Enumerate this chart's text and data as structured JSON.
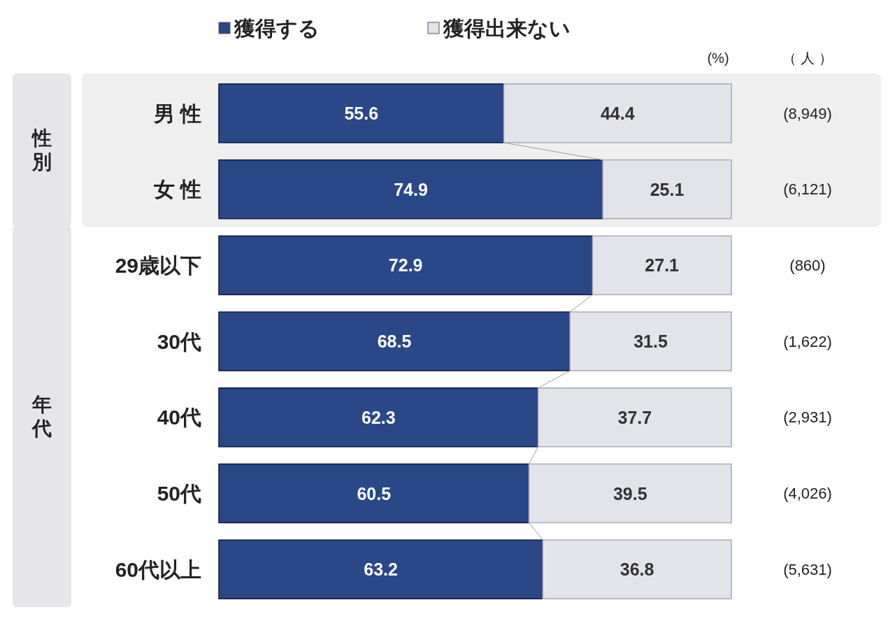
{
  "chart_data": {
    "type": "bar",
    "orientation": "horizontal",
    "stacked": true,
    "data_labels": true,
    "legend": "top",
    "xlim": [
      0,
      100
    ],
    "categories": [
      "男 性",
      "女 性",
      "29歳以下",
      "30代",
      "40代",
      "50代",
      "60代以上"
    ],
    "series": [
      {
        "name": "獲得する",
        "color": "#2a4788",
        "values": [
          55.6,
          74.9,
          72.9,
          68.5,
          62.3,
          60.5,
          63.2
        ]
      },
      {
        "name": "獲得出来ない",
        "color": "#e3e3ea",
        "values": [
          44.4,
          25.1,
          27.1,
          31.5,
          37.7,
          39.5,
          36.8
        ]
      }
    ],
    "annotations": [
      "(%)",
      "（ 人 ）",
      "性別",
      "年代",
      "(8,949)",
      "(6,121)",
      "(860)",
      "(1,622)",
      "(2,931)",
      "(4,026)",
      "(5,631)"
    ]
  }
}
